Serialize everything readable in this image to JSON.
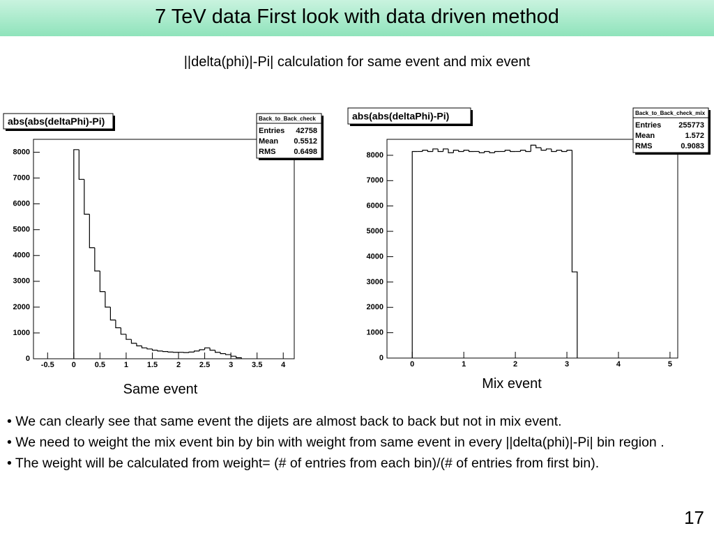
{
  "slide": {
    "title": "7 TeV data First look with data driven method",
    "subtitle": "||delta(phi)|-Pi| calculation for same event and mix event",
    "bullets": [
      "• We can clearly see that same event the dijets are almost back to back but not in mix event.",
      "• We need to weight the mix event bin by bin with weight from same event in every ||delta(phi)|-Pi| bin region .",
      "• The weight will be calculated from weight= (# of entries from each bin)/(# of entries from first bin)."
    ],
    "page_number": "17"
  },
  "chart_data": [
    {
      "type": "histogram",
      "title": "abs(abs(deltaPhi)-Pi)",
      "caption": "Same event",
      "stats": {
        "name": "Back_to_Back_check",
        "rows": [
          {
            "label": "Entries",
            "value": 42758
          },
          {
            "label": "Mean",
            "value": 0.5512
          },
          {
            "label": "RMS",
            "value": 0.6498
          }
        ]
      },
      "bins": [
        0,
        0.1,
        0.2,
        0.3,
        0.4,
        0.5,
        0.6,
        0.7,
        0.8,
        0.9,
        1,
        1.1,
        1.2,
        1.3,
        1.4,
        1.5,
        1.6,
        1.7,
        1.8,
        1.9,
        2,
        2.1,
        2.2,
        2.3,
        2.4,
        2.5,
        2.6,
        2.7,
        2.8,
        2.9,
        3,
        3.1,
        3.2
      ],
      "counts": [
        8100,
        6950,
        5600,
        4300,
        3400,
        2600,
        2000,
        1500,
        1200,
        950,
        750,
        600,
        500,
        420,
        380,
        330,
        300,
        280,
        260,
        250,
        250,
        240,
        260,
        300,
        350,
        420,
        330,
        250,
        200,
        160,
        100,
        40
      ],
      "color": "#000000",
      "xlim": [
        -0.77,
        4.21
      ],
      "xticks": [
        -0.5,
        0,
        0.5,
        1,
        1.5,
        2,
        2.5,
        3,
        3.5,
        4
      ],
      "ylim": [
        0,
        8500
      ],
      "yticks": [
        0,
        1000,
        2000,
        3000,
        4000,
        5000,
        6000,
        7000,
        8000
      ]
    },
    {
      "type": "histogram",
      "title": "abs(abs(deltaPhi)-Pi)",
      "caption": "Mix event",
      "stats": {
        "name": "Back_to_Back_check_mix",
        "rows": [
          {
            "label": "Entries",
            "value": 255773
          },
          {
            "label": "Mean",
            "value": 1.572
          },
          {
            "label": "RMS",
            "value": 0.9083
          }
        ]
      },
      "bins": [
        0,
        0.1,
        0.2,
        0.3,
        0.4,
        0.5,
        0.6,
        0.7,
        0.8,
        0.9,
        1,
        1.1,
        1.2,
        1.3,
        1.4,
        1.5,
        1.6,
        1.7,
        1.8,
        1.9,
        2,
        2.1,
        2.2,
        2.3,
        2.4,
        2.5,
        2.6,
        2.7,
        2.8,
        2.9,
        3,
        3.1,
        3.2
      ],
      "counts": [
        8150,
        8150,
        8200,
        8150,
        8250,
        8150,
        8250,
        8100,
        8200,
        8150,
        8200,
        8150,
        8150,
        8100,
        8150,
        8100,
        8150,
        8150,
        8200,
        8150,
        8150,
        8200,
        8150,
        8400,
        8300,
        8200,
        8250,
        8150,
        8200,
        8150,
        8200,
        3400
      ],
      "color": "#000000",
      "xlim": [
        -0.49,
        5.15
      ],
      "xticks": [
        0,
        1,
        2,
        3,
        4,
        5
      ],
      "ylim": [
        0,
        8630
      ],
      "yticks": [
        0,
        1000,
        2000,
        3000,
        4000,
        5000,
        6000,
        7000,
        8000
      ]
    }
  ]
}
